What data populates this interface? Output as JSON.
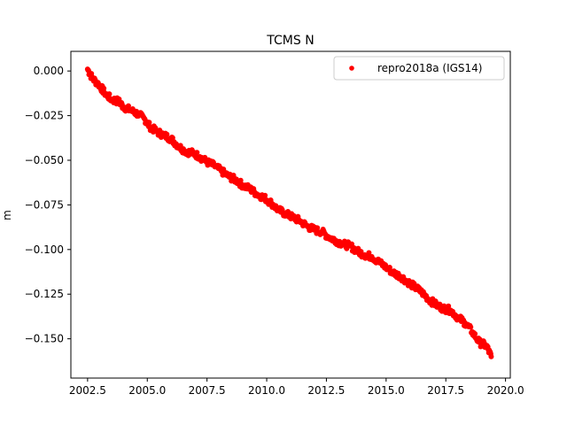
{
  "chart_data": {
    "type": "scatter",
    "title": "TCMS N",
    "xlabel": "",
    "ylabel": "m",
    "xlim": [
      2001.8,
      2020.2
    ],
    "ylim": [
      -0.172,
      0.011
    ],
    "x_ticks": [
      2002.5,
      2005.0,
      2007.5,
      2010.0,
      2012.5,
      2015.0,
      2017.5,
      2020.0
    ],
    "x_tick_labels": [
      "2002.5",
      "2005.0",
      "2007.5",
      "2010.0",
      "2012.5",
      "2015.0",
      "2017.5",
      "2020.0"
    ],
    "y_ticks": [
      0.0,
      -0.025,
      -0.05,
      -0.075,
      -0.1,
      -0.125,
      -0.15
    ],
    "y_tick_labels": [
      "0.000",
      "−0.025",
      "−0.050",
      "−0.075",
      "−0.100",
      "−0.125",
      "−0.150"
    ],
    "grid": false,
    "legend_position": "top-right",
    "series": [
      {
        "name": "repro2018a (IGS14)",
        "color": "#ff0000",
        "marker": "circle",
        "x": [
          2002.5,
          2002.7,
          2003.0,
          2003.2,
          2003.5,
          2003.8,
          2004.0,
          2004.3,
          2004.6,
          2004.9,
          2005.1,
          2005.4,
          2005.7,
          2006.0,
          2006.3,
          2006.6,
          2006.9,
          2007.2,
          2007.5,
          2007.8,
          2008.1,
          2008.4,
          2008.7,
          2009.0,
          2009.3,
          2009.6,
          2009.9,
          2010.2,
          2010.5,
          2010.8,
          2011.1,
          2011.4,
          2011.7,
          2012.0,
          2012.3,
          2012.6,
          2012.9,
          2013.2,
          2013.5,
          2013.8,
          2014.1,
          2014.4,
          2014.7,
          2015.0,
          2015.3,
          2015.6,
          2015.9,
          2016.2,
          2016.5,
          2016.8,
          2017.1,
          2017.4,
          2017.7,
          2018.0,
          2018.3,
          2018.6,
          2018.9,
          2019.2,
          2019.4
        ],
        "y": [
          0.001,
          -0.004,
          -0.008,
          -0.012,
          -0.016,
          -0.017,
          -0.02,
          -0.022,
          -0.024,
          -0.027,
          -0.031,
          -0.034,
          -0.036,
          -0.038,
          -0.042,
          -0.045,
          -0.046,
          -0.048,
          -0.051,
          -0.053,
          -0.056,
          -0.059,
          -0.061,
          -0.064,
          -0.066,
          -0.069,
          -0.071,
          -0.074,
          -0.078,
          -0.08,
          -0.082,
          -0.084,
          -0.087,
          -0.089,
          -0.09,
          -0.093,
          -0.095,
          -0.097,
          -0.098,
          -0.101,
          -0.103,
          -0.104,
          -0.107,
          -0.11,
          -0.113,
          -0.115,
          -0.118,
          -0.121,
          -0.124,
          -0.128,
          -0.131,
          -0.133,
          -0.134,
          -0.138,
          -0.141,
          -0.146,
          -0.152,
          -0.154,
          -0.16
        ]
      }
    ]
  }
}
